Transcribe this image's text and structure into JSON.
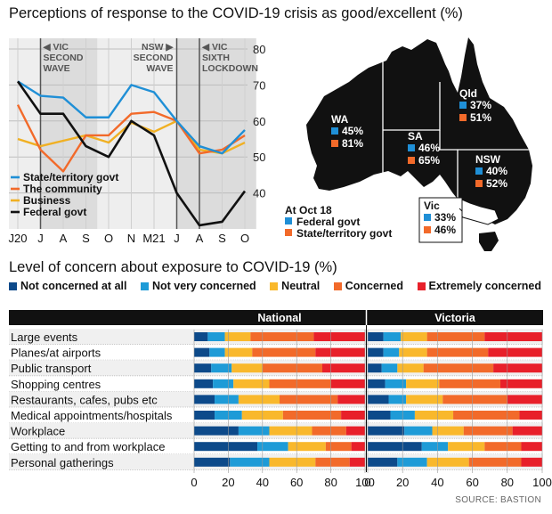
{
  "title1": "Perceptions of response to the COVID-19 crisis as good/excellent (%)",
  "title2": "Level of concern about exposure to COVID-19 (%)",
  "source": "SOURCE: BASTION",
  "colors": {
    "state": "#1f8fd6",
    "community": "#f26a2a",
    "business": "#f0b023",
    "federal": "#111111",
    "not_concerned": "#0d4a8a",
    "not_very": "#1e9bd7",
    "neutral": "#f9b82c",
    "concerned": "#f26a2a",
    "extremely": "#e8202a",
    "map_land": "#111111",
    "map_vic": "#ffffff"
  },
  "chart_data": [
    {
      "type": "line",
      "categories": [
        "J20",
        "J",
        "A",
        "S",
        "O",
        "N",
        "M21",
        "J",
        "A",
        "S",
        "O"
      ],
      "ylim": [
        30,
        80
      ],
      "yticks": [
        40,
        50,
        60,
        70,
        80
      ],
      "annotations": [
        {
          "text": [
            "◀ VIC",
            "SECOND",
            "WAVE"
          ],
          "at": 1
        },
        {
          "text": [
            "NSW ▶",
            "SECOND",
            "WAVE"
          ],
          "at": 7
        },
        {
          "text": [
            "◀ VIC",
            "SIXTH",
            "LOCKDOWN"
          ],
          "at": 8
        }
      ],
      "series": [
        {
          "name": "State/territory govt",
          "key": "state",
          "values": [
            71,
            67,
            66.5,
            61,
            61,
            70,
            68,
            60,
            53,
            51,
            57.5
          ]
        },
        {
          "name": "The community",
          "key": "community",
          "values": [
            64.5,
            52,
            46,
            56,
            56,
            62,
            62.5,
            60,
            51,
            52,
            56
          ]
        },
        {
          "name": "Business",
          "key": "business",
          "values": [
            55,
            53,
            54.5,
            56,
            54,
            59.5,
            57,
            60,
            52,
            51,
            54
          ]
        },
        {
          "name": "Federal govt",
          "key": "federal",
          "values": [
            71,
            62,
            62,
            53,
            50,
            60,
            56,
            40,
            31,
            32,
            40.5
          ]
        }
      ]
    },
    {
      "type": "map",
      "title": "At Oct 18",
      "legend": [
        {
          "name": "Federal govt",
          "key": "state"
        },
        {
          "name": "State/territory govt",
          "key": "community"
        }
      ],
      "states": [
        {
          "name": "WA",
          "federal": "45%",
          "state_govt": "81%"
        },
        {
          "name": "Qld",
          "federal": "37%",
          "state_govt": "51%"
        },
        {
          "name": "SA",
          "federal": "46%",
          "state_govt": "65%"
        },
        {
          "name": "NSW",
          "federal": "40%",
          "state_govt": "52%"
        },
        {
          "name": "Vic",
          "federal": "33%",
          "state_govt": "46%"
        }
      ]
    },
    {
      "type": "bar",
      "stacked": true,
      "orientation": "horizontal",
      "xlim": [
        0,
        100
      ],
      "xticks": [
        0,
        20,
        40,
        60,
        80,
        100
      ],
      "panels": [
        "National",
        "Victoria"
      ],
      "legend": [
        {
          "name": "Not concerned at all",
          "key": "not_concerned"
        },
        {
          "name": "Not very concerned",
          "key": "not_very"
        },
        {
          "name": "Neutral",
          "key": "neutral"
        },
        {
          "name": "Concerned",
          "key": "concerned"
        },
        {
          "name": "Extremely concerned",
          "key": "extremely"
        }
      ],
      "categories": [
        "Large events",
        "Planes/at airports",
        "Public transport",
        "Shopping centres",
        "Restaurants, cafes, pubs etc",
        "Medical appointments/hospitals",
        "Workplace",
        "Getting to and from workplace",
        "Personal gatherings"
      ],
      "national": [
        [
          8,
          10,
          15,
          37,
          30
        ],
        [
          9,
          9,
          16,
          37,
          29
        ],
        [
          10,
          12,
          18,
          35,
          25
        ],
        [
          11,
          12,
          21,
          36,
          20
        ],
        [
          12,
          14,
          24,
          34,
          16
        ],
        [
          12,
          16,
          24,
          34,
          14
        ],
        [
          26,
          18,
          25,
          20,
          11
        ],
        [
          37,
          18,
          22,
          15,
          8
        ],
        [
          21,
          23,
          27,
          20,
          9
        ]
      ],
      "victoria": [
        [
          9,
          10,
          15,
          33,
          33
        ],
        [
          9,
          9,
          16,
          35,
          31
        ],
        [
          8,
          9,
          15,
          40,
          28
        ],
        [
          10,
          12,
          19,
          35,
          24
        ],
        [
          12,
          10,
          21,
          37,
          20
        ],
        [
          13,
          14,
          22,
          38,
          13
        ],
        [
          21,
          16,
          18,
          28,
          17
        ],
        [
          31,
          15,
          21,
          21,
          12
        ],
        [
          17,
          17,
          24,
          30,
          12
        ]
      ]
    }
  ]
}
